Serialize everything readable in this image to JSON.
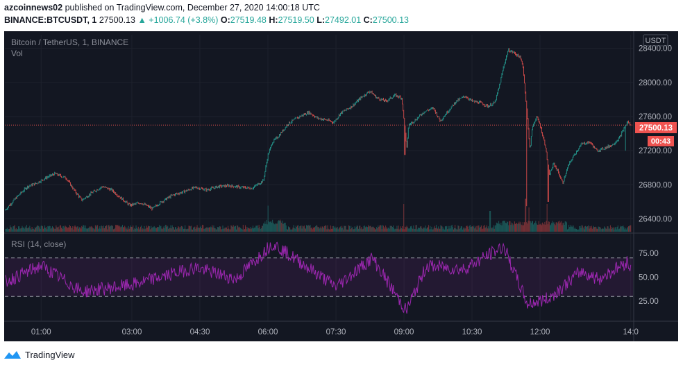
{
  "header": {
    "author": "azcoinnews02",
    "published_text": "published on TradingView.com, December 27, 2020 14:00:18 UTC",
    "symbol": "BINANCE:BTCUSDT, 1",
    "last": "27500.13",
    "change": "▲ +1006.74 (+3.8%)",
    "open_label": "O:",
    "open": "27519.48",
    "high_label": "H:",
    "high": "27519.50",
    "low_label": "L:",
    "low": "27492.01",
    "close_label": "C:",
    "close": "27500.13"
  },
  "chart": {
    "legend_title": "Bitcoin / TetherUS, 1, BINANCE",
    "vol_label": "Vol",
    "currency_badge": "USDT",
    "rsi_label": "RSI (14, close)",
    "price_tag": "27500.13",
    "countdown_tag": "00:43",
    "colors": {
      "up": "#26a69a",
      "down": "#ef5350",
      "rsi": "#9c27b0",
      "bg": "#131722"
    }
  },
  "chart_data": [
    {
      "type": "candlestick",
      "ylim": [
        26250,
        28560
      ],
      "y_ticks": [
        26400,
        26800,
        27200,
        27600,
        28000,
        28400
      ],
      "y_tick_labels": [
        "26400.00",
        "26800.00",
        "27200.00",
        "27600.00",
        "28000.00",
        "28400.00"
      ],
      "x_tick_labels": [
        "01:00",
        "03:00",
        "04:30",
        "06:00",
        "07:30",
        "09:00",
        "10:30",
        "12:00",
        "14:0"
      ],
      "x_ticks_hours": [
        1,
        3,
        4.5,
        6,
        7.5,
        9,
        10.5,
        12,
        14
      ],
      "x_range_hours": [
        0.2,
        14.05
      ],
      "price_line": 27500.13,
      "close_path": [
        {
          "t": 0.2,
          "p": 26500
        },
        {
          "t": 0.45,
          "p": 26650
        },
        {
          "t": 0.7,
          "p": 26780
        },
        {
          "t": 0.9,
          "p": 26820
        },
        {
          "t": 1.1,
          "p": 26880
        },
        {
          "t": 1.3,
          "p": 26930
        },
        {
          "t": 1.55,
          "p": 26880
        },
        {
          "t": 1.75,
          "p": 26720
        },
        {
          "t": 1.9,
          "p": 26620
        },
        {
          "t": 2.1,
          "p": 26700
        },
        {
          "t": 2.35,
          "p": 26780
        },
        {
          "t": 2.55,
          "p": 26740
        },
        {
          "t": 2.75,
          "p": 26650
        },
        {
          "t": 2.95,
          "p": 26560
        },
        {
          "t": 3.2,
          "p": 26590
        },
        {
          "t": 3.45,
          "p": 26520
        },
        {
          "t": 3.65,
          "p": 26600
        },
        {
          "t": 3.9,
          "p": 26680
        },
        {
          "t": 4.15,
          "p": 26720
        },
        {
          "t": 4.4,
          "p": 26770
        },
        {
          "t": 4.65,
          "p": 26740
        },
        {
          "t": 4.9,
          "p": 26780
        },
        {
          "t": 5.15,
          "p": 26790
        },
        {
          "t": 5.4,
          "p": 26770
        },
        {
          "t": 5.65,
          "p": 26760
        },
        {
          "t": 5.9,
          "p": 26850
        },
        {
          "t": 6.0,
          "p": 27150
        },
        {
          "t": 6.1,
          "p": 27300
        },
        {
          "t": 6.25,
          "p": 27380
        },
        {
          "t": 6.45,
          "p": 27520
        },
        {
          "t": 6.7,
          "p": 27600
        },
        {
          "t": 6.9,
          "p": 27650
        },
        {
          "t": 7.1,
          "p": 27580
        },
        {
          "t": 7.3,
          "p": 27560
        },
        {
          "t": 7.45,
          "p": 27530
        },
        {
          "t": 7.6,
          "p": 27640
        },
        {
          "t": 7.85,
          "p": 27720
        },
        {
          "t": 8.05,
          "p": 27820
        },
        {
          "t": 8.25,
          "p": 27900
        },
        {
          "t": 8.4,
          "p": 27820
        },
        {
          "t": 8.6,
          "p": 27780
        },
        {
          "t": 8.8,
          "p": 27850
        },
        {
          "t": 8.95,
          "p": 27820
        },
        {
          "t": 9.02,
          "p": 27450
        },
        {
          "t": 9.06,
          "p": 27220
        },
        {
          "t": 9.1,
          "p": 27500
        },
        {
          "t": 9.25,
          "p": 27560
        },
        {
          "t": 9.45,
          "p": 27660
        },
        {
          "t": 9.65,
          "p": 27700
        },
        {
          "t": 9.8,
          "p": 27550
        },
        {
          "t": 9.95,
          "p": 27650
        },
        {
          "t": 10.15,
          "p": 27780
        },
        {
          "t": 10.35,
          "p": 27840
        },
        {
          "t": 10.5,
          "p": 27780
        },
        {
          "t": 10.7,
          "p": 27760
        },
        {
          "t": 10.85,
          "p": 27720
        },
        {
          "t": 11.0,
          "p": 27760
        },
        {
          "t": 11.1,
          "p": 27950
        },
        {
          "t": 11.2,
          "p": 28200
        },
        {
          "t": 11.3,
          "p": 28380
        },
        {
          "t": 11.42,
          "p": 28350
        },
        {
          "t": 11.55,
          "p": 28300
        },
        {
          "t": 11.62,
          "p": 28200
        },
        {
          "t": 11.68,
          "p": 27850
        },
        {
          "t": 11.74,
          "p": 27450
        },
        {
          "t": 11.78,
          "p": 27200
        },
        {
          "t": 11.82,
          "p": 27450
        },
        {
          "t": 11.92,
          "p": 27600
        },
        {
          "t": 12.0,
          "p": 27500
        },
        {
          "t": 12.12,
          "p": 27250
        },
        {
          "t": 12.2,
          "p": 26900
        },
        {
          "t": 12.3,
          "p": 27050
        },
        {
          "t": 12.4,
          "p": 26950
        },
        {
          "t": 12.5,
          "p": 26820
        },
        {
          "t": 12.62,
          "p": 27020
        },
        {
          "t": 12.75,
          "p": 27150
        },
        {
          "t": 12.92,
          "p": 27280
        },
        {
          "t": 13.1,
          "p": 27300
        },
        {
          "t": 13.25,
          "p": 27200
        },
        {
          "t": 13.42,
          "p": 27230
        },
        {
          "t": 13.6,
          "p": 27270
        },
        {
          "t": 13.75,
          "p": 27350
        },
        {
          "t": 13.85,
          "p": 27460
        },
        {
          "t": 13.93,
          "p": 27540
        },
        {
          "t": 14.0,
          "p": 27500
        }
      ],
      "spikes": [
        {
          "t": 9.02,
          "low": 27150
        },
        {
          "t": 11.7,
          "low": 26550
        },
        {
          "t": 12.18,
          "low": 26600
        },
        {
          "t": 13.88,
          "low": 27200
        }
      ]
    },
    {
      "type": "bar",
      "name": "Vol",
      "note": "volume bars (relative, no scale printed)",
      "peaks": [
        {
          "t": 6.0,
          "v": 0.75
        },
        {
          "t": 9.0,
          "v": 0.8
        },
        {
          "t": 10.9,
          "v": 0.6
        },
        {
          "t": 11.68,
          "v": 0.95
        },
        {
          "t": 11.75,
          "v": 0.7
        },
        {
          "t": 12.15,
          "v": 0.8
        }
      ]
    },
    {
      "type": "line",
      "name": "RSI (14, close)",
      "ylim": [
        5,
        95
      ],
      "y_ticks": [
        25,
        50,
        75
      ],
      "y_tick_labels": [
        "25.00",
        "50.00",
        "75.00"
      ],
      "band": [
        30,
        70
      ],
      "values_key_points": [
        {
          "t": 0.2,
          "v": 45
        },
        {
          "t": 1.0,
          "v": 62
        },
        {
          "t": 1.9,
          "v": 35
        },
        {
          "t": 3.0,
          "v": 42
        },
        {
          "t": 4.4,
          "v": 60
        },
        {
          "t": 5.3,
          "v": 48
        },
        {
          "t": 6.1,
          "v": 85
        },
        {
          "t": 6.7,
          "v": 66
        },
        {
          "t": 7.5,
          "v": 40
        },
        {
          "t": 8.3,
          "v": 70
        },
        {
          "t": 9.05,
          "v": 15
        },
        {
          "t": 9.5,
          "v": 62
        },
        {
          "t": 10.3,
          "v": 58
        },
        {
          "t": 11.2,
          "v": 82
        },
        {
          "t": 11.72,
          "v": 22
        },
        {
          "t": 12.2,
          "v": 28
        },
        {
          "t": 12.9,
          "v": 56
        },
        {
          "t": 13.3,
          "v": 48
        },
        {
          "t": 13.92,
          "v": 66
        },
        {
          "t": 14.0,
          "v": 58
        }
      ]
    }
  ]
}
